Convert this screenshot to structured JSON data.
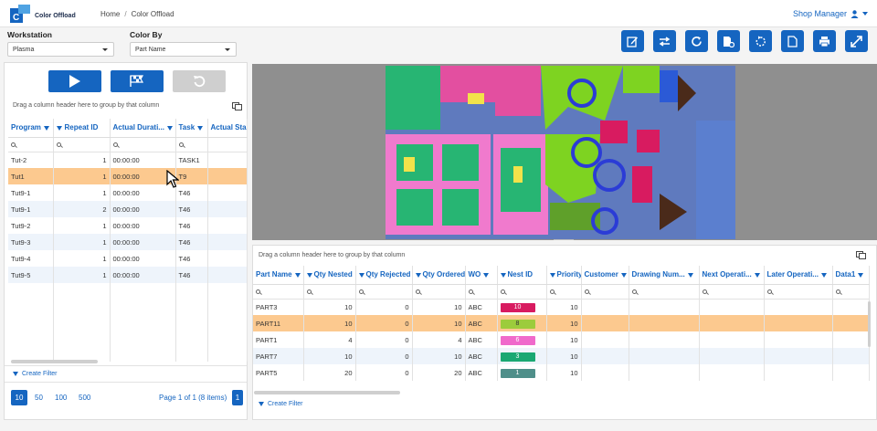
{
  "app": {
    "title": "Color Offload",
    "user": "Shop Manager"
  },
  "breadcrumb": {
    "home": "Home",
    "sep": "/",
    "current": "Color Offload"
  },
  "workstation": {
    "label": "Workstation",
    "value": "Plasma"
  },
  "colorby": {
    "label": "Color By",
    "value": "Part Name"
  },
  "toolbar": [
    "edit-icon",
    "swap-icon",
    "refresh-icon",
    "part-settings-icon",
    "rotate-icon",
    "document-icon",
    "print-icon",
    "fullscreen-icon"
  ],
  "left": {
    "group_hint": "Drag a column header here to group by that column",
    "columns": [
      "Program",
      "Repeat ID",
      "Actual Durati...",
      "Task",
      "Actual Start T"
    ],
    "rows": [
      {
        "program": "Tut-2",
        "repeat": "1",
        "duration": "00:00:00",
        "task": "TASK1"
      },
      {
        "program": "Tut1",
        "repeat": "1",
        "duration": "00:00:00",
        "task": "T9"
      },
      {
        "program": "Tut9-1",
        "repeat": "1",
        "duration": "00:00:00",
        "task": "T46"
      },
      {
        "program": "Tut9-1",
        "repeat": "2",
        "duration": "00:00:00",
        "task": "T46"
      },
      {
        "program": "Tut9-2",
        "repeat": "1",
        "duration": "00:00:00",
        "task": "T46"
      },
      {
        "program": "Tut9-3",
        "repeat": "1",
        "duration": "00:00:00",
        "task": "T46"
      },
      {
        "program": "Tut9-4",
        "repeat": "1",
        "duration": "00:00:00",
        "task": "T46"
      },
      {
        "program": "Tut9-5",
        "repeat": "1",
        "duration": "00:00:00",
        "task": "T46"
      }
    ],
    "create_filter": "Create Filter",
    "page_sizes": [
      "10",
      "50",
      "100",
      "500"
    ],
    "page_info": "Page 1 of 1 (8 items)",
    "page": "1"
  },
  "right": {
    "group_hint": "Drag a column header here to group by that column",
    "columns": [
      "Part Name",
      "Qty Nested",
      "Qty Rejected",
      "Qty Ordered",
      "WO",
      "Nest ID",
      "Priority",
      "Customer",
      "Drawing Num...",
      "Next Operati...",
      "Later Operati...",
      "Data1"
    ],
    "rows": [
      {
        "part": "PART3",
        "nested": "10",
        "rejected": "0",
        "ordered": "10",
        "wo": "ABC",
        "nest": "10",
        "nest_color": "#d81b60",
        "priority": "10"
      },
      {
        "part": "PART11",
        "nested": "10",
        "rejected": "0",
        "ordered": "10",
        "wo": "ABC",
        "nest": "8",
        "nest_color": "#9ccc3c",
        "priority": "10"
      },
      {
        "part": "PART1",
        "nested": "4",
        "rejected": "0",
        "ordered": "4",
        "wo": "ABC",
        "nest": "6",
        "nest_color": "#f06acb",
        "priority": "10"
      },
      {
        "part": "PART7",
        "nested": "10",
        "rejected": "0",
        "ordered": "10",
        "wo": "ABC",
        "nest": "3",
        "nest_color": "#1aa872",
        "priority": "10"
      },
      {
        "part": "PART5",
        "nested": "20",
        "rejected": "0",
        "ordered": "20",
        "wo": "ABC",
        "nest": "1",
        "nest_color": "#4f8f8a",
        "priority": "10"
      }
    ],
    "create_filter": "Create Filter"
  },
  "colors": {
    "accent": "#1565c0",
    "selected": "#fcc98f"
  }
}
